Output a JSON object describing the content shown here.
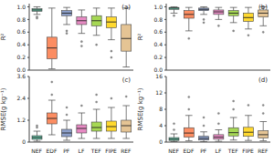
{
  "chart_data": [
    {
      "type": "box",
      "label": "(a)",
      "y_label": "R²",
      "categories": [
        "NEF",
        "EDF",
        "PF",
        "LF",
        "TEF",
        "FIPE",
        "REF"
      ],
      "colors": [
        "#66c2a5",
        "#fc8d62",
        "#8da0cb",
        "#e78ac3",
        "#a6d854",
        "#ffd92f",
        "#e5c494"
      ],
      "ylim": [
        0,
        1.05
      ],
      "yticks": [
        {
          "value": 0,
          "label": "0.0"
        },
        {
          "value": 0.2,
          "label": "0.2"
        },
        {
          "value": 0.4,
          "label": "0.4"
        },
        {
          "value": 0.6,
          "label": "0.6"
        },
        {
          "value": 0.8,
          "label": "0.8"
        },
        {
          "value": 1,
          "label": "1.0"
        }
      ],
      "tick_labels": "y",
      "boxes": [
        {
          "min": 0.88,
          "q1": 0.93,
          "median": 0.95,
          "q3": 0.97,
          "max": 1.0,
          "outliers": [
            0.84,
            0.82
          ]
        },
        {
          "min": 0.02,
          "q1": 0.18,
          "median": 0.35,
          "q3": 0.52,
          "max": 0.98,
          "outliers": []
        },
        {
          "min": 0.72,
          "q1": 0.86,
          "median": 0.9,
          "q3": 0.94,
          "max": 0.99,
          "outliers": [
            0.62,
            0.58
          ]
        },
        {
          "min": 0.58,
          "q1": 0.72,
          "median": 0.78,
          "q3": 0.84,
          "max": 0.95,
          "outliers": [
            0.45,
            0.38
          ]
        },
        {
          "min": 0.55,
          "q1": 0.7,
          "median": 0.78,
          "q3": 0.86,
          "max": 0.98,
          "outliers": [
            0.4
          ]
        },
        {
          "min": 0.48,
          "q1": 0.67,
          "median": 0.76,
          "q3": 0.84,
          "max": 0.98,
          "outliers": [
            0.3,
            0.2
          ]
        },
        {
          "min": 0.05,
          "q1": 0.3,
          "median": 0.5,
          "q3": 0.72,
          "max": 0.98,
          "outliers": []
        }
      ]
    },
    {
      "type": "box",
      "label": "(b)",
      "y_label": "R²",
      "categories": [
        "NEF",
        "EDF",
        "PF",
        "LF",
        "TEF",
        "FIPE",
        "REF"
      ],
      "colors": [
        "#66c2a5",
        "#fc8d62",
        "#8da0cb",
        "#e78ac3",
        "#a6d854",
        "#ffd92f",
        "#e5c494"
      ],
      "ylim": [
        0,
        1.05
      ],
      "yticks": [
        {
          "value": 0,
          "label": "0.0"
        },
        {
          "value": 0.2,
          "label": "0.2"
        },
        {
          "value": 0.4,
          "label": "0.4"
        },
        {
          "value": 0.6,
          "label": "0.6"
        },
        {
          "value": 0.8,
          "label": "0.8"
        },
        {
          "value": 1,
          "label": "1.0"
        }
      ],
      "tick_labels": "y",
      "boxes": [
        {
          "min": 0.9,
          "q1": 0.96,
          "median": 0.98,
          "q3": 0.99,
          "max": 1.0,
          "outliers": [
            0.86
          ]
        },
        {
          "min": 0.62,
          "q1": 0.82,
          "median": 0.88,
          "q3": 0.94,
          "max": 0.99,
          "outliers": [
            0.5
          ]
        },
        {
          "min": 0.88,
          "q1": 0.94,
          "median": 0.96,
          "q3": 0.98,
          "max": 1.0,
          "outliers": [
            0.8,
            0.75
          ]
        },
        {
          "min": 0.8,
          "q1": 0.88,
          "median": 0.92,
          "q3": 0.95,
          "max": 0.99,
          "outliers": [
            0.7
          ]
        },
        {
          "min": 0.75,
          "q1": 0.86,
          "median": 0.9,
          "q3": 0.94,
          "max": 0.99,
          "outliers": [
            0.62
          ]
        },
        {
          "min": 0.65,
          "q1": 0.77,
          "median": 0.83,
          "q3": 0.9,
          "max": 0.99,
          "outliers": [
            0.55
          ]
        },
        {
          "min": 0.7,
          "q1": 0.84,
          "median": 0.9,
          "q3": 0.95,
          "max": 1.0,
          "outliers": [
            0.6
          ]
        }
      ]
    },
    {
      "type": "box",
      "label": "(c)",
      "y_label": "RMSE(g kg⁻¹)",
      "categories": [
        "NEF",
        "EDF",
        "PF",
        "LF",
        "TEF",
        "FIPE",
        "REF"
      ],
      "colors": [
        "#66c2a5",
        "#fc8d62",
        "#8da0cb",
        "#e78ac3",
        "#a6d854",
        "#ffd92f",
        "#e5c494"
      ],
      "ylim": [
        0,
        3.6
      ],
      "yticks": [
        0,
        1.2,
        2.4,
        3.6
      ],
      "boxes": [
        {
          "min": 0.05,
          "q1": 0.15,
          "median": 0.25,
          "q3": 0.35,
          "max": 0.6,
          "outliers": [
            0.8,
            0.9
          ]
        },
        {
          "min": 0.4,
          "q1": 1.0,
          "median": 1.3,
          "q3": 1.6,
          "max": 2.3,
          "outliers": [
            2.6,
            3.3
          ]
        },
        {
          "min": 0.1,
          "q1": 0.3,
          "median": 0.5,
          "q3": 0.7,
          "max": 1.2,
          "outliers": [
            1.5,
            1.9
          ]
        },
        {
          "min": 0.2,
          "q1": 0.5,
          "median": 0.75,
          "q3": 0.95,
          "max": 1.6,
          "outliers": [
            2.0
          ]
        },
        {
          "min": 0.2,
          "q1": 0.6,
          "median": 0.8,
          "q3": 1.1,
          "max": 1.8,
          "outliers": [
            2.2,
            2.6
          ]
        },
        {
          "min": 0.2,
          "q1": 0.6,
          "median": 0.85,
          "q3": 1.15,
          "max": 1.9,
          "outliers": [
            2.4
          ]
        },
        {
          "min": 0.2,
          "q1": 0.55,
          "median": 0.9,
          "q3": 1.2,
          "max": 2.0,
          "outliers": [
            2.5
          ]
        }
      ]
    },
    {
      "type": "box",
      "label": "(d)",
      "y_label": "RMSE(g kg⁻¹)",
      "categories": [
        "NEF",
        "EDF",
        "PF",
        "LF",
        "TEF",
        "FIPE",
        "REF"
      ],
      "colors": [
        "#66c2a5",
        "#fc8d62",
        "#8da0cb",
        "#e78ac3",
        "#a6d854",
        "#ffd92f",
        "#e5c494"
      ],
      "ylim": [
        0,
        16
      ],
      "yticks": [
        0,
        4,
        8,
        12,
        16
      ],
      "boxes": [
        {
          "min": 0.1,
          "q1": 0.4,
          "median": 0.7,
          "q3": 1.1,
          "max": 2.0,
          "outliers": [
            3.0,
            4.5
          ]
        },
        {
          "min": 0.3,
          "q1": 1.2,
          "median": 2.2,
          "q3": 3.5,
          "max": 6.5,
          "outliers": [
            8.0,
            11.0
          ]
        },
        {
          "min": 0.1,
          "q1": 0.5,
          "median": 0.9,
          "q3": 1.4,
          "max": 2.5,
          "outliers": [
            4.0,
            6.0
          ]
        },
        {
          "min": 0.2,
          "q1": 0.7,
          "median": 1.2,
          "q3": 1.8,
          "max": 3.0,
          "outliers": [
            4.5,
            7.0
          ]
        },
        {
          "min": 0.5,
          "q1": 1.5,
          "median": 2.3,
          "q3": 3.5,
          "max": 6.0,
          "outliers": [
            8.0,
            10.0
          ]
        },
        {
          "min": 0.4,
          "q1": 1.4,
          "median": 2.4,
          "q3": 3.6,
          "max": 6.5,
          "outliers": [
            9.0
          ]
        },
        {
          "min": 0.3,
          "q1": 1.0,
          "median": 1.8,
          "q3": 2.8,
          "max": 5.0,
          "outliers": [
            7.0,
            9.0
          ]
        }
      ]
    }
  ]
}
